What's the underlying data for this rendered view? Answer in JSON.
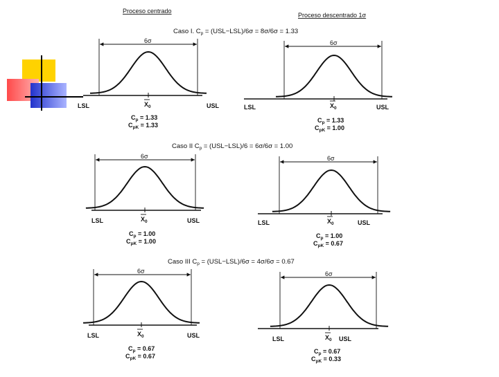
{
  "headers": {
    "left": "Proceso centrado",
    "right": "Proceso descentrado 1σ"
  },
  "cases": [
    {
      "title": "Caso I. Cp = (USL−LSL)/6σ = 8σ/6σ = 1.33",
      "title_parts": {
        "pre": "Caso I. C",
        "sub": "p",
        "post": " = (USL−LSL)/6σ = 8σ/6σ = 1.33"
      },
      "left": {
        "cp": "1.33",
        "cpk": "1.33"
      },
      "right": {
        "cp": "1.33",
        "cpk": "1.00"
      }
    },
    {
      "title": "Caso II Cp = (USL−LSL)/6 = 6σ/6σ = 1.00",
      "title_parts": {
        "pre": "Caso II C",
        "sub": "p",
        "post": " = (USL−LSL)/6 = 6σ/6σ = 1.00"
      },
      "left": {
        "cp": "1.00",
        "cpk": "1.00"
      },
      "right": {
        "cp": "1.00",
        "cpk": "0.67"
      }
    },
    {
      "title": "Caso III Cp = (USL−LSL)/6σ = 4σ/6σ = 0.67",
      "title_parts": {
        "pre": "Caso III C",
        "sub": "p",
        "post": " = (USL−LSL)/6σ = 4σ/6σ = 0.67"
      },
      "left": {
        "cp": "0.67",
        "cpk": "0.67"
      },
      "right": {
        "cp": "0.67",
        "cpk": "0.33"
      }
    }
  ],
  "labels": {
    "lsl": "LSL",
    "usl": "USL",
    "six_sigma": "6σ",
    "xbar": "X",
    "xbar_sub": "0",
    "cp": "C",
    "cp_sub": "p",
    "cpk_sub": "pK",
    "equals": " = "
  },
  "decoration": {
    "colors": {
      "yellow": "#ffd200",
      "red": "#ff5a5a",
      "blue": "#2233cc",
      "line": "#000000"
    }
  }
}
